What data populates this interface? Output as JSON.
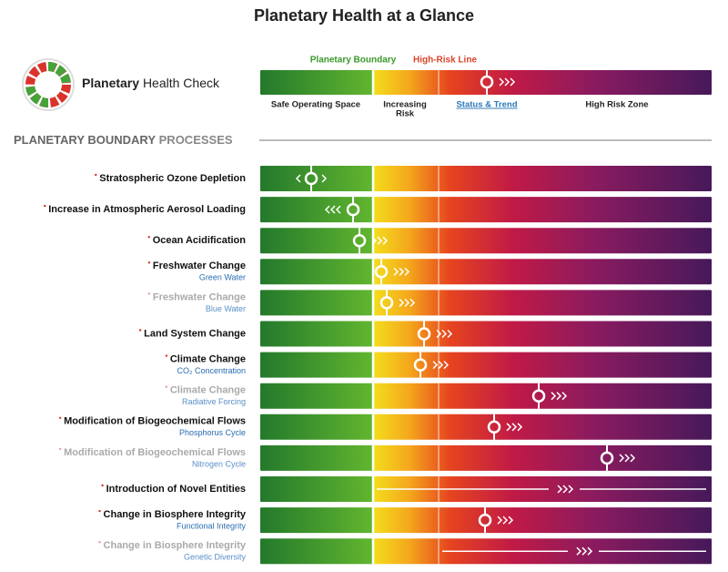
{
  "title": "Planetary Health at a Glance",
  "logo": {
    "bold": "Planetary",
    "rest": "Health Check"
  },
  "legend": {
    "planetary_boundary": "Planetary Boundary",
    "high_risk_line": "High-Risk Line",
    "safe": "Safe Operating Space",
    "increasing": [
      "Increasing",
      "Risk"
    ],
    "status": "Status & Trend",
    "high_risk_zone": "High Risk Zone"
  },
  "section": {
    "bold": "PLANETARY BOUNDARY",
    "rest": "PROCESSES"
  },
  "rows": [
    {
      "label": "Stratospheric Ozone Depletion",
      "faded": false
    },
    {
      "label": "Increase in Atmospheric Aerosol Loading",
      "faded": false
    },
    {
      "label": "Ocean Acidification",
      "faded": false
    },
    {
      "label": "Freshwater Change",
      "sublabel": "Green Water",
      "faded": false
    },
    {
      "label": "Freshwater Change",
      "sublabel": "Blue Water",
      "faded": true
    },
    {
      "label": "Land System Change",
      "faded": false
    },
    {
      "label": "Climate Change",
      "sublabel": "CO₂ Concentration",
      "faded": false
    },
    {
      "label": "Climate Change",
      "sublabel": "Radiative Forcing",
      "faded": true
    },
    {
      "label": "Modification of Biogeochemical Flows",
      "sublabel": "Phosphorus Cycle",
      "faded": false
    },
    {
      "label": "Modification of Biogeochemical Flows",
      "sublabel": "Nitrogen Cycle",
      "faded": true
    },
    {
      "label": "Introduction of Novel Entities",
      "faded": false
    },
    {
      "label": "Change in Biosphere Integrity",
      "sublabel": "Functional Integrity",
      "faded": false
    },
    {
      "label": "Change in Biosphere Integrity",
      "sublabel": "Genetic Diversity",
      "faded": true
    }
  ]
}
